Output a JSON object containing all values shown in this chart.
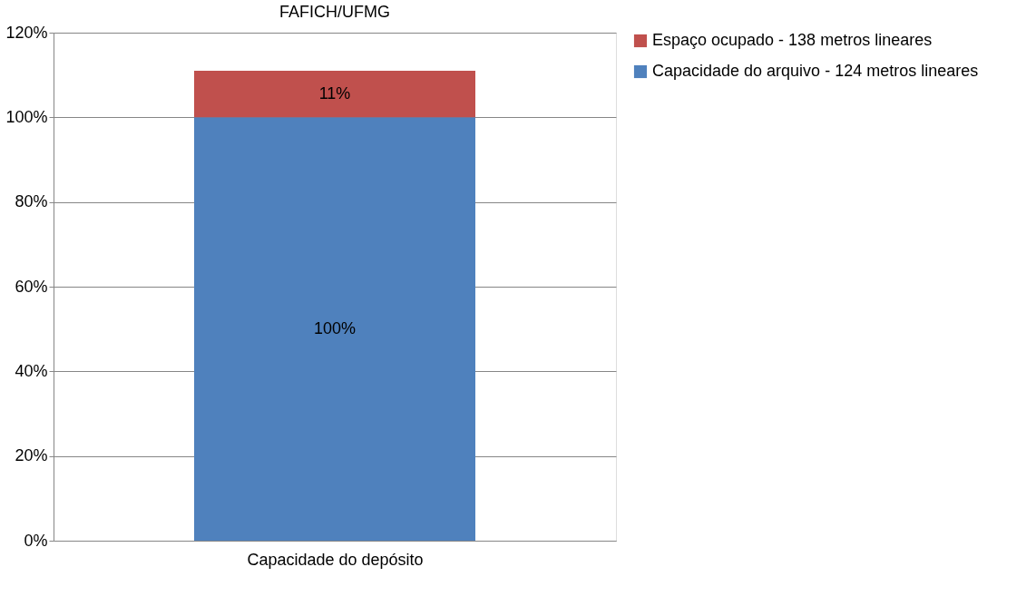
{
  "chart_data": {
    "type": "bar",
    "title": "FAFICH/UFMG",
    "stacked": true,
    "categories": [
      "Capacidade do depósito"
    ],
    "series": [
      {
        "name": "Capacidade do arquivo - 124 metros lineares",
        "color": "#4f81bd",
        "values": [
          100
        ],
        "value_labels": [
          "100%"
        ]
      },
      {
        "name": "Espaço ocupado - 138 metros lineares",
        "color": "#c0504d",
        "values": [
          11
        ],
        "value_labels": [
          "11%"
        ]
      }
    ],
    "ylim": [
      0,
      120
    ],
    "yticks": [
      {
        "value": 0,
        "label": "0%"
      },
      {
        "value": 20,
        "label": "20%"
      },
      {
        "value": 40,
        "label": "40%"
      },
      {
        "value": 60,
        "label": "60%"
      },
      {
        "value": 80,
        "label": "80%"
      },
      {
        "value": 100,
        "label": "100%"
      },
      {
        "value": 120,
        "label": "120%"
      }
    ],
    "grid": "y",
    "legend": "right"
  }
}
